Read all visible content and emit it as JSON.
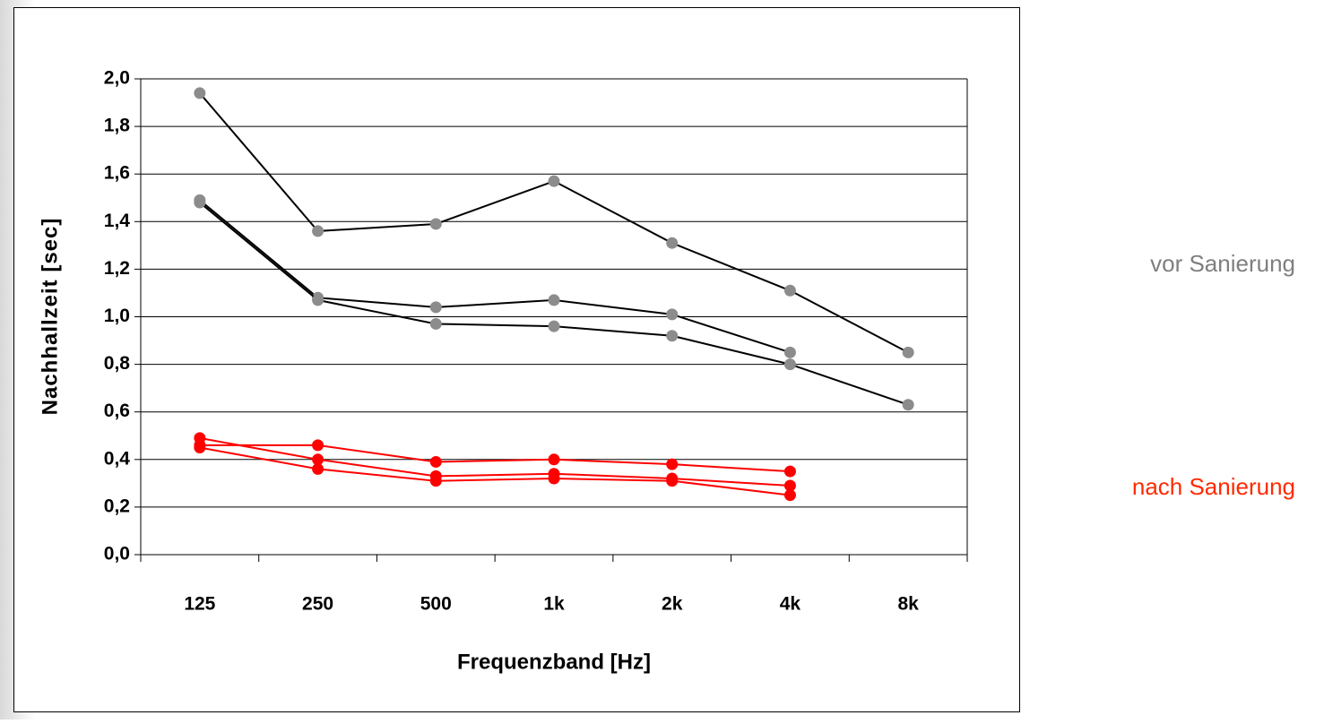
{
  "chart_data": {
    "type": "line",
    "y_label": "Nachhallzeit [sec]",
    "x_label": "Frequenzband [Hz]",
    "categories": [
      "125",
      "250",
      "500",
      "1k",
      "2k",
      "4k",
      "8k"
    ],
    "ylim": [
      0,
      2
    ],
    "yticks": [
      {
        "value": 0,
        "label": "0,0"
      },
      {
        "value": 0.2,
        "label": "0,2"
      },
      {
        "value": 0.4,
        "label": "0,4"
      },
      {
        "value": 0.6,
        "label": "0,6"
      },
      {
        "value": 0.8,
        "label": "0,8"
      },
      {
        "value": 1.0,
        "label": "1,0"
      },
      {
        "value": 1.2,
        "label": "1,2"
      },
      {
        "value": 1.4,
        "label": "1,4"
      },
      {
        "value": 1.6,
        "label": "1,6"
      },
      {
        "value": 1.8,
        "label": "1,8"
      },
      {
        "value": 2.0,
        "label": "2,0"
      }
    ],
    "grid": true,
    "series": [
      {
        "color": "#8c8c8c",
        "line_color": "#000000",
        "values": [
          1.94,
          1.36,
          1.39,
          1.57,
          1.31,
          1.11,
          0.85
        ]
      },
      {
        "color": "#8c8c8c",
        "line_color": "#000000",
        "values": [
          1.49,
          1.08,
          1.04,
          1.07,
          1.01,
          0.85,
          null
        ]
      },
      {
        "color": "#8c8c8c",
        "line_color": "#000000",
        "values": [
          1.48,
          1.07,
          0.97,
          0.96,
          0.92,
          0.8,
          0.63
        ]
      },
      {
        "color": "#ff0000",
        "line_color": "#ff0000",
        "values": [
          0.49,
          0.4,
          0.33,
          0.34,
          0.32,
          0.29,
          null
        ]
      },
      {
        "color": "#ff0000",
        "line_color": "#ff0000",
        "values": [
          0.46,
          0.46,
          0.39,
          0.4,
          0.38,
          0.35,
          null
        ]
      },
      {
        "color": "#ff0000",
        "line_color": "#ff0000",
        "values": [
          0.45,
          0.36,
          0.31,
          0.32,
          0.31,
          0.25,
          null
        ]
      }
    ],
    "annotations": [
      {
        "text": "vor Sanierung",
        "color": "#7f7f7f"
      },
      {
        "text": "nach Sanierung",
        "color": "#ff2a00"
      }
    ]
  }
}
